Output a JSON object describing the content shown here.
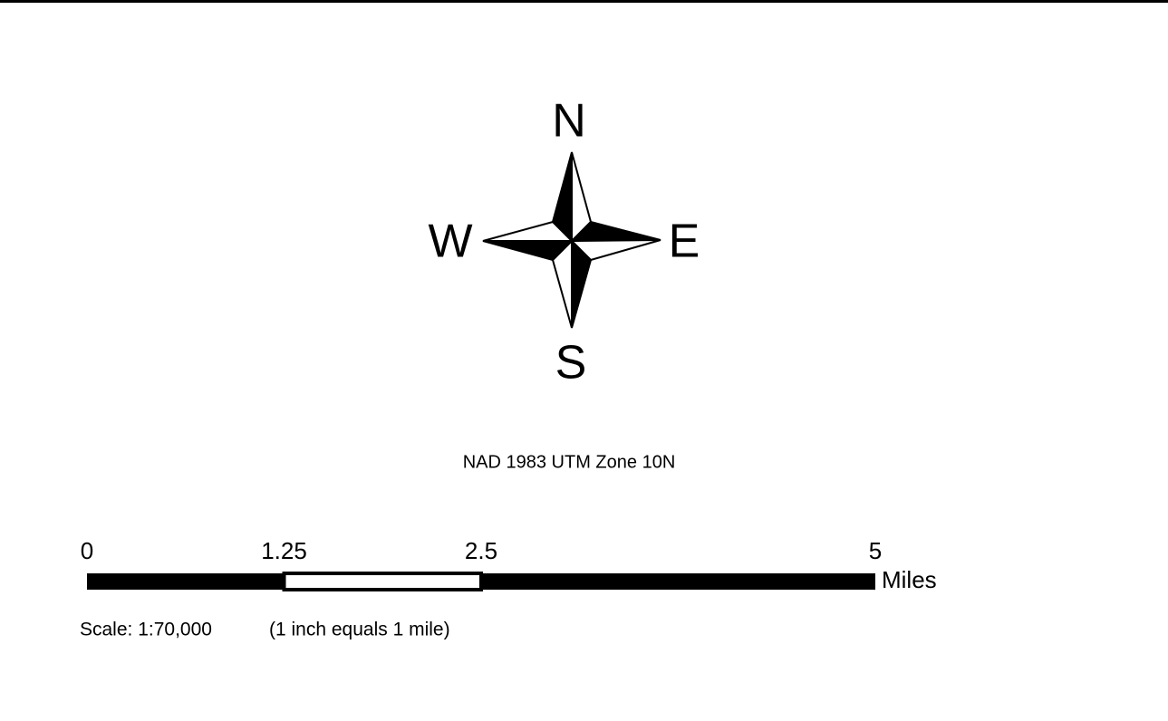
{
  "compass": {
    "north": "N",
    "east": "E",
    "south": "S",
    "west": "W"
  },
  "projection": "NAD 1983 UTM Zone 10N",
  "scale_bar": {
    "ticks": [
      0,
      1.25,
      2.5,
      5
    ],
    "segments": [
      [
        0,
        1.25
      ],
      [
        1.25,
        2.5
      ],
      [
        2.5,
        5
      ]
    ],
    "units": "Miles"
  },
  "scale_text": "Scale: 1:70,000",
  "scale_note": "(1 inch equals 1 mile)"
}
